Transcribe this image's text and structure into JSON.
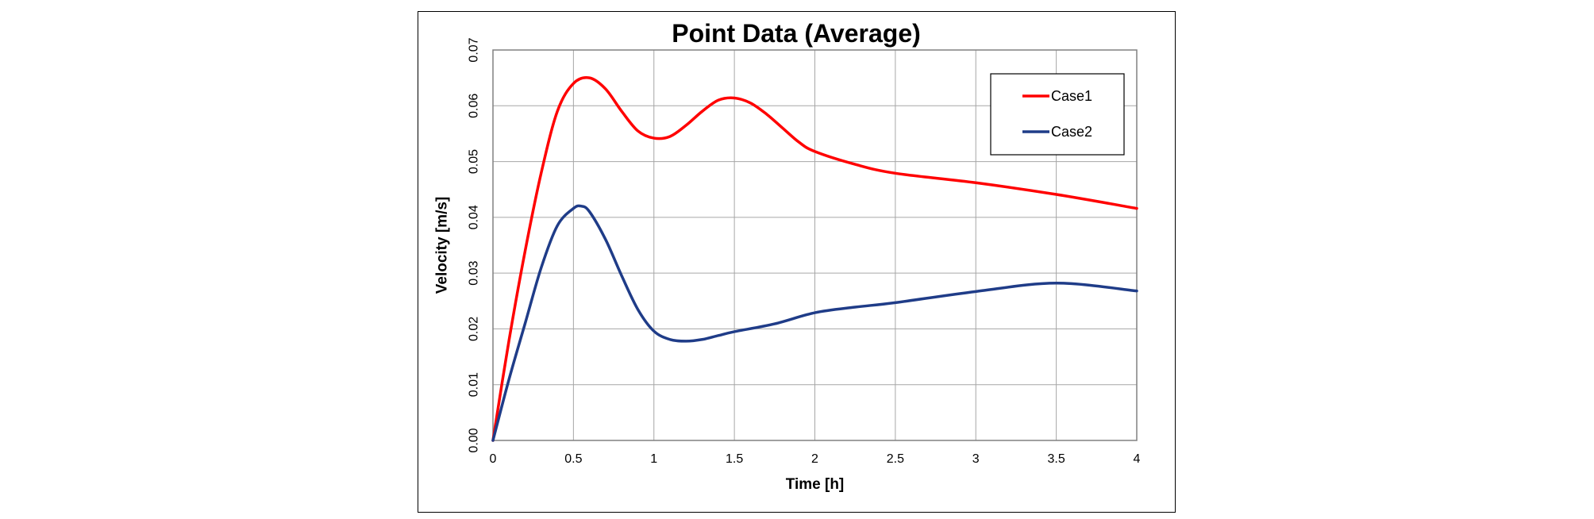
{
  "chart_data": {
    "type": "line",
    "title": "Point Data (Average)",
    "xlabel": "Time [h]",
    "ylabel": "Velocity [m/s]",
    "xlim": [
      0,
      4
    ],
    "ylim": [
      0,
      0.07
    ],
    "x_ticks": [
      "0",
      "0.5",
      "1",
      "1.5",
      "2",
      "2.5",
      "3",
      "3.5",
      "4"
    ],
    "y_ticks": [
      "0.00",
      "0.01",
      "0.02",
      "0.03",
      "0.04",
      "0.05",
      "0.06",
      "0.07"
    ],
    "grid": true,
    "legend_position": "top-right",
    "series": [
      {
        "name": "Case1",
        "color": "#ff0000",
        "x": [
          0,
          0.1,
          0.2,
          0.3,
          0.4,
          0.5,
          0.6,
          0.7,
          0.8,
          0.9,
          1.0,
          1.1,
          1.2,
          1.3,
          1.4,
          1.5,
          1.6,
          1.7,
          1.8,
          1.9,
          2.0,
          2.25,
          2.5,
          3.0,
          3.5,
          4.0
        ],
        "values": [
          0,
          0.018,
          0.034,
          0.048,
          0.059,
          0.064,
          0.065,
          0.063,
          0.059,
          0.0555,
          0.0542,
          0.0545,
          0.0565,
          0.059,
          0.061,
          0.0614,
          0.0605,
          0.0585,
          0.056,
          0.0535,
          0.0518,
          0.0495,
          0.0479,
          0.0462,
          0.0441,
          0.0416
        ]
      },
      {
        "name": "Case2",
        "color": "#1f3c88",
        "x": [
          0,
          0.1,
          0.2,
          0.3,
          0.4,
          0.5,
          0.55,
          0.6,
          0.7,
          0.8,
          0.9,
          1.0,
          1.1,
          1.2,
          1.3,
          1.4,
          1.5,
          1.75,
          2.0,
          2.25,
          2.5,
          3.0,
          3.5,
          4.0
        ],
        "values": [
          0,
          0.011,
          0.021,
          0.031,
          0.0385,
          0.0416,
          0.042,
          0.041,
          0.036,
          0.0295,
          0.0235,
          0.0196,
          0.0181,
          0.0178,
          0.0181,
          0.0188,
          0.0195,
          0.0209,
          0.0229,
          0.0239,
          0.0247,
          0.0267,
          0.0282,
          0.0268
        ]
      }
    ]
  }
}
